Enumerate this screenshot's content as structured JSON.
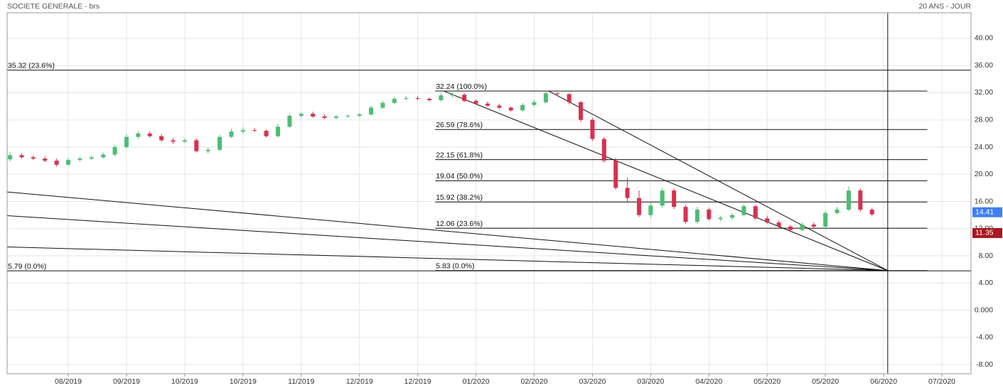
{
  "chart_data": {
    "type": "candlestick",
    "title": "SOCIETE GENERALE - brs",
    "subtitle": "20 ANS - JOUR",
    "up_color": "#4dbd74",
    "down_color": "#d9304f",
    "grid": true,
    "xlim": [
      0,
      331
    ],
    "ylim": [
      -9.36,
      43.76
    ],
    "xticks": [
      {
        "value": 21,
        "label": "08/2019"
      },
      {
        "value": 41,
        "label": "09/2019"
      },
      {
        "value": 61,
        "label": "10/2019"
      },
      {
        "value": 81,
        "label": "10/2019"
      },
      {
        "value": 101,
        "label": "11/2019"
      },
      {
        "value": 121,
        "label": "12/2019"
      },
      {
        "value": 141,
        "label": "12/2019"
      },
      {
        "value": 161,
        "label": "01/2020"
      },
      {
        "value": 181,
        "label": "02/2020"
      },
      {
        "value": 201,
        "label": "03/2020"
      },
      {
        "value": 221,
        "label": "03/2020"
      },
      {
        "value": 241,
        "label": "04/2020"
      },
      {
        "value": 261,
        "label": "05/2020"
      },
      {
        "value": 281,
        "label": "05/2020"
      },
      {
        "value": 301,
        "label": "06/2020"
      },
      {
        "value": 321,
        "label": "07/2020"
      }
    ],
    "yticks": [
      {
        "value": -8,
        "label": "-8.00"
      },
      {
        "value": -4,
        "label": "-4.00"
      },
      {
        "value": 0,
        "label": "0.000"
      },
      {
        "value": 4,
        "label": "4.00"
      },
      {
        "value": 8,
        "label": "8.00"
      },
      {
        "value": 12,
        "label": "12.00"
      },
      {
        "value": 16,
        "label": "16.00"
      },
      {
        "value": 20,
        "label": "20.00"
      },
      {
        "value": 24,
        "label": "24.00"
      },
      {
        "value": 28,
        "label": "28.00"
      },
      {
        "value": 32,
        "label": "32.00"
      },
      {
        "value": 36,
        "label": "36.00"
      },
      {
        "value": 40,
        "label": "40.00"
      }
    ],
    "x": [
      1,
      5,
      9,
      13,
      17,
      21,
      25,
      29,
      33,
      37,
      41,
      45,
      49,
      53,
      57,
      61,
      65,
      69,
      73,
      77,
      81,
      85,
      89,
      93,
      97,
      101,
      105,
      109,
      113,
      117,
      121,
      125,
      129,
      133,
      137,
      141,
      145,
      149,
      153,
      157,
      161,
      165,
      169,
      173,
      177,
      181,
      185,
      189,
      193,
      197,
      201,
      205,
      209,
      213,
      217,
      221,
      225,
      229,
      233,
      237,
      241,
      245,
      249,
      253,
      257,
      261,
      265,
      269,
      273,
      277,
      281,
      285,
      289,
      293,
      297
    ],
    "open": [
      22.2,
      22.8,
      22.5,
      22.3,
      22.0,
      21.4,
      22.1,
      22.3,
      22.5,
      22.9,
      24.0,
      25.5,
      26.0,
      25.6,
      25.0,
      24.8,
      25.0,
      23.4,
      23.6,
      25.5,
      26.3,
      26.5,
      26.4,
      25.6,
      27.0,
      28.6,
      28.9,
      28.5,
      28.3,
      28.5,
      28.6,
      28.8,
      29.8,
      30.5,
      31.1,
      31.2,
      31.1,
      30.9,
      31.6,
      31.7,
      30.8,
      30.4,
      30.1,
      29.8,
      29.4,
      30.2,
      30.6,
      31.9,
      31.8,
      30.6,
      28.0,
      25.2,
      22.0,
      18.0,
      16.5,
      14.0,
      15.4,
      17.6,
      15.2,
      13.0,
      14.8,
      13.4,
      13.6,
      14.0,
      15.3,
      13.5,
      12.9,
      12.3,
      11.8,
      12.6,
      12.3,
      14.3,
      14.8,
      17.6,
      14.8
    ],
    "high": [
      23.2,
      23.1,
      22.8,
      22.6,
      22.3,
      22.4,
      22.6,
      22.8,
      23.2,
      24.3,
      25.9,
      26.3,
      26.3,
      25.9,
      25.3,
      25.3,
      25.3,
      23.9,
      25.8,
      26.7,
      26.9,
      26.8,
      26.6,
      27.4,
      28.9,
      29.1,
      29.2,
      28.8,
      28.7,
      28.8,
      29.0,
      30.1,
      30.8,
      31.4,
      31.5,
      31.5,
      31.3,
      31.9,
      32.0,
      31.9,
      31.0,
      30.7,
      30.4,
      30.0,
      30.5,
      30.9,
      32.24,
      32.1,
      31.9,
      30.8,
      28.3,
      25.5,
      22.4,
      19.5,
      17.6,
      15.8,
      18.0,
      17.9,
      15.5,
      15.2,
      15.1,
      13.9,
      14.3,
      15.6,
      15.5,
      13.9,
      13.2,
      12.5,
      12.9,
      12.9,
      14.6,
      15.2,
      18.2,
      17.9,
      15.1
    ],
    "low": [
      21.9,
      22.3,
      22.1,
      21.8,
      21.1,
      21.2,
      21.9,
      22.1,
      22.3,
      22.7,
      23.8,
      25.2,
      25.4,
      24.8,
      24.5,
      24.6,
      23.2,
      23.1,
      23.4,
      25.3,
      26.0,
      26.2,
      25.4,
      25.4,
      26.8,
      28.3,
      28.3,
      28.1,
      28.1,
      28.3,
      28.4,
      28.6,
      29.6,
      30.3,
      30.9,
      30.9,
      30.7,
      30.7,
      31.3,
      30.6,
      30.2,
      29.9,
      29.6,
      29.2,
      29.2,
      30.0,
      30.4,
      31.5,
      30.3,
      27.7,
      24.9,
      21.7,
      17.7,
      15.9,
      13.7,
      13.6,
      15.1,
      14.9,
      12.7,
      12.7,
      13.2,
      13.1,
      13.3,
      13.8,
      13.3,
      12.7,
      12.1,
      11.5,
      11.6,
      12.1,
      12.1,
      14.1,
      14.6,
      14.5,
      13.8
    ],
    "close": [
      22.8,
      22.5,
      22.3,
      22.0,
      21.4,
      22.1,
      22.3,
      22.5,
      22.9,
      24.0,
      25.5,
      26.0,
      25.6,
      25.0,
      24.8,
      25.0,
      23.4,
      23.6,
      25.5,
      26.3,
      26.5,
      26.4,
      25.6,
      27.0,
      28.6,
      28.9,
      28.5,
      28.3,
      28.5,
      28.6,
      28.8,
      29.8,
      30.5,
      31.1,
      31.2,
      31.1,
      30.9,
      31.6,
      31.7,
      30.8,
      30.4,
      30.1,
      29.8,
      29.4,
      30.2,
      30.6,
      31.9,
      31.8,
      30.6,
      28.0,
      25.2,
      22.0,
      18.0,
      16.5,
      14.0,
      15.4,
      17.6,
      15.2,
      13.0,
      14.8,
      13.4,
      13.6,
      14.0,
      15.3,
      13.5,
      12.9,
      12.3,
      11.8,
      12.6,
      12.3,
      14.3,
      14.8,
      17.6,
      14.8,
      14.1
    ],
    "fib_levels": [
      {
        "value": 35.32,
        "label": "35.32  (23.6%)",
        "xlim": [
          0,
          331
        ]
      },
      {
        "value": 32.24,
        "label": "32.24  (100.0%)",
        "xlim": [
          147,
          316
        ]
      },
      {
        "value": 26.59,
        "label": "26.59  (78.6%)",
        "xlim": [
          147,
          316
        ]
      },
      {
        "value": 22.15,
        "label": "22.15  (61.8%)",
        "xlim": [
          147,
          316
        ]
      },
      {
        "value": 19.04,
        "label": "19.04  (50.0%)",
        "xlim": [
          147,
          316
        ]
      },
      {
        "value": 15.92,
        "label": "15.92  (38.2%)",
        "xlim": [
          147,
          316
        ]
      },
      {
        "value": 12.06,
        "label": "12.06  (23.6%)",
        "xlim": [
          147,
          316
        ]
      },
      {
        "value": 5.83,
        "label": "5.83  (0.0%)",
        "xlim": [
          147,
          316
        ]
      },
      {
        "value": 5.79,
        "label": "5.79  (0.0%)",
        "xlim": [
          0,
          331
        ]
      }
    ],
    "trendlines": [
      {
        "x": [
          150,
          302.4
        ],
        "y": [
          32.24,
          5.83
        ]
      },
      {
        "x": [
          186,
          302.4
        ],
        "y": [
          32.24,
          5.83
        ]
      },
      {
        "x": [
          0,
          302.4
        ],
        "y": [
          17.4,
          5.83
        ]
      },
      {
        "x": [
          0,
          302.4
        ],
        "y": [
          13.9,
          5.83
        ]
      },
      {
        "x": [
          0,
          302.4
        ],
        "y": [
          9.3,
          5.83
        ]
      }
    ],
    "crosshair_x": 302.4,
    "price_tags": [
      {
        "value": 14.41,
        "color": "#3d7ff5"
      },
      {
        "value": 11.35,
        "color": "#a8181f"
      }
    ]
  }
}
